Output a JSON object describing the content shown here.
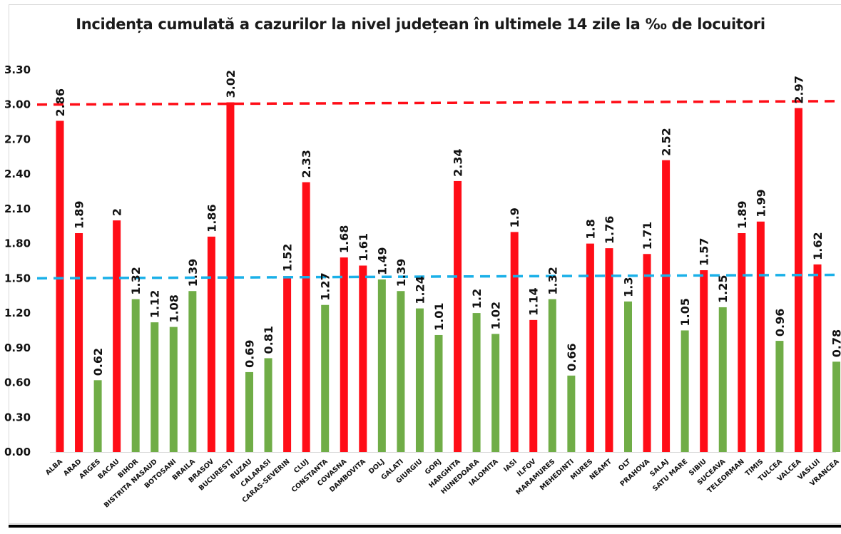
{
  "chart_data": {
    "type": "bar",
    "title": "Incidența cumulată a cazurilor la nivel județean în ultimele 14 zile la ‰ de locuitori",
    "xlabel": "",
    "ylabel": "",
    "ylim": [
      0,
      3.3
    ],
    "yticks": [
      "0.00",
      "0.30",
      "0.60",
      "0.90",
      "1.20",
      "1.50",
      "1.80",
      "2.10",
      "2.40",
      "2.70",
      "3.00",
      "3.30"
    ],
    "ytick_values": [
      0,
      0.3,
      0.6,
      0.9,
      1.2,
      1.5,
      1.8,
      2.1,
      2.4,
      2.7,
      3.0,
      3.3
    ],
    "grid": false,
    "legend": "none",
    "colors": {
      "above_threshold": "#ff0d17",
      "below_threshold": "#70ad47",
      "red_line": "#ff0d17",
      "blue_line": "#1ab0e8"
    },
    "reference_lines": [
      {
        "name": "threshold-3",
        "value": 3.0,
        "end_value": 3.03,
        "color": "#ff0d17",
        "style": "dashed"
      },
      {
        "name": "threshold-1.5",
        "value": 1.5,
        "end_value": 1.53,
        "color": "#1ab0e8",
        "style": "dashed"
      }
    ],
    "categories": [
      "ALBA",
      "ARAD",
      "ARGES",
      "BACAU",
      "BIHOR",
      "BISTRITA NASAUD",
      "BOTOSANI",
      "BRAILA",
      "BRASOV",
      "BUCURESTI",
      "BUZAU",
      "CALARASI",
      "CARAS-SEVERIN",
      "CLUJ",
      "CONSTANTA",
      "COVASNA",
      "DAMBOVITA",
      "DOLJ",
      "GALATI",
      "GIURGIU",
      "GORJ",
      "HARGHITA",
      "HUNEDOARA",
      "IALOMITA",
      "IASI",
      "ILFOV",
      "MARAMURES",
      "MEHEDINTI",
      "MURES",
      "NEAMT",
      "OLT",
      "PRAHOVA",
      "SALAJ",
      "SATU MARE",
      "SIBIU",
      "SUCEAVA",
      "TELEORMAN",
      "TIMIS",
      "TULCEA",
      "VALCEA",
      "VASLUI",
      "VRANCEA"
    ],
    "values": [
      2.86,
      1.89,
      0.62,
      2,
      1.32,
      1.12,
      1.08,
      1.39,
      1.86,
      3.02,
      0.69,
      0.81,
      1.52,
      2.33,
      1.27,
      1.68,
      1.61,
      1.49,
      1.39,
      1.24,
      1.01,
      2.34,
      1.2,
      1.02,
      1.9,
      1.14,
      1.32,
      0.66,
      1.8,
      1.76,
      1.3,
      1.71,
      2.52,
      1.05,
      1.57,
      1.25,
      1.89,
      1.99,
      0.96,
      2.97,
      1.62,
      0.78
    ],
    "data_labels": [
      "2.86",
      "1.89",
      "0.62",
      "2",
      "1.32",
      "1.12",
      "1.08",
      "1.39",
      "1.86",
      "3.02",
      "0.69",
      "0.81",
      "1.52",
      "2.33",
      "1.27",
      "1.68",
      "1.61",
      "1.49",
      "1.39",
      "1.24",
      "1.01",
      "2.34",
      "1.2",
      "1.02",
      "1.9",
      "1.14",
      "1.32",
      "0.66",
      "1.8",
      "1.76",
      "1.3",
      "1.71",
      "2.52",
      "1.05",
      "1.57",
      "1.25",
      "1.89",
      "1.99",
      "0.96",
      "2.97",
      "1.62",
      "0.78"
    ],
    "bar_colors": [
      "red",
      "red",
      "green",
      "red",
      "green",
      "green",
      "green",
      "green",
      "red",
      "red",
      "green",
      "green",
      "red",
      "red",
      "green",
      "red",
      "red",
      "green",
      "green",
      "green",
      "green",
      "red",
      "green",
      "green",
      "red",
      "red",
      "green",
      "green",
      "red",
      "red",
      "green",
      "red",
      "red",
      "green",
      "red",
      "green",
      "red",
      "red",
      "green",
      "red",
      "red",
      "green"
    ]
  }
}
